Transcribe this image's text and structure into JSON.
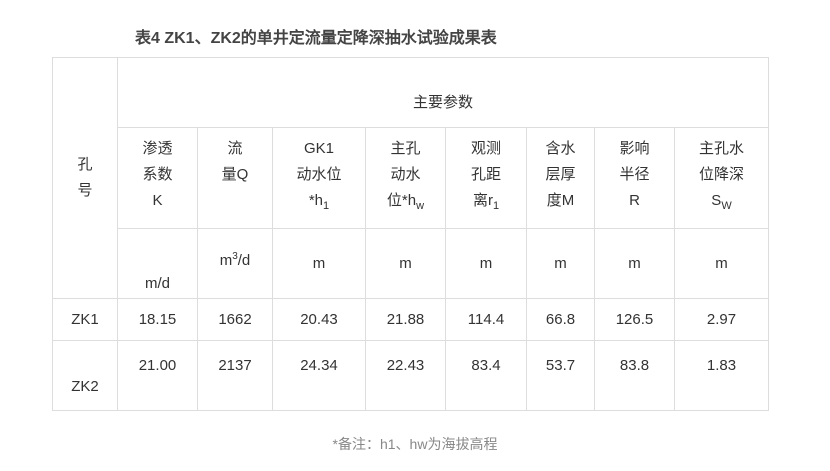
{
  "title": "表4 ZK1、ZK2的单井定流量定降深抽水试验成果表",
  "header": {
    "hole": "孔\n号",
    "main": "主要参数"
  },
  "columns": [
    {
      "name": "渗透\n系数\nK",
      "unit": "m/d"
    },
    {
      "name": "流\n量Q",
      "unit_base": "m",
      "unit_sup": "3",
      "unit_rest": "/d"
    },
    {
      "name": "GK1\n动水位\n*h",
      "sub": "1",
      "unit": "m"
    },
    {
      "name": "主孔\n动水\n位*h",
      "sub": "w",
      "unit": "m"
    },
    {
      "name": "观测\n孔距\n离r",
      "sub": "1",
      "unit": "m"
    },
    {
      "name": "含水\n层厚\n度M",
      "unit": "m"
    },
    {
      "name": "影响\n半径\nR",
      "unit": "m"
    },
    {
      "name": "主孔水\n位降深\nS",
      "sub": "W",
      "unit": "m"
    }
  ],
  "rows": [
    {
      "id": "ZK1",
      "values": [
        "18.15",
        "1662",
        "20.43",
        "21.88",
        "114.4",
        "66.8",
        "126.5",
        "2.97"
      ]
    },
    {
      "id": "ZK2",
      "values": [
        "21.00",
        "2137",
        "24.34",
        "22.43",
        "83.4",
        "53.7",
        "83.8",
        "1.83"
      ]
    }
  ],
  "note": "*备注：h1、hw为海拔高程"
}
